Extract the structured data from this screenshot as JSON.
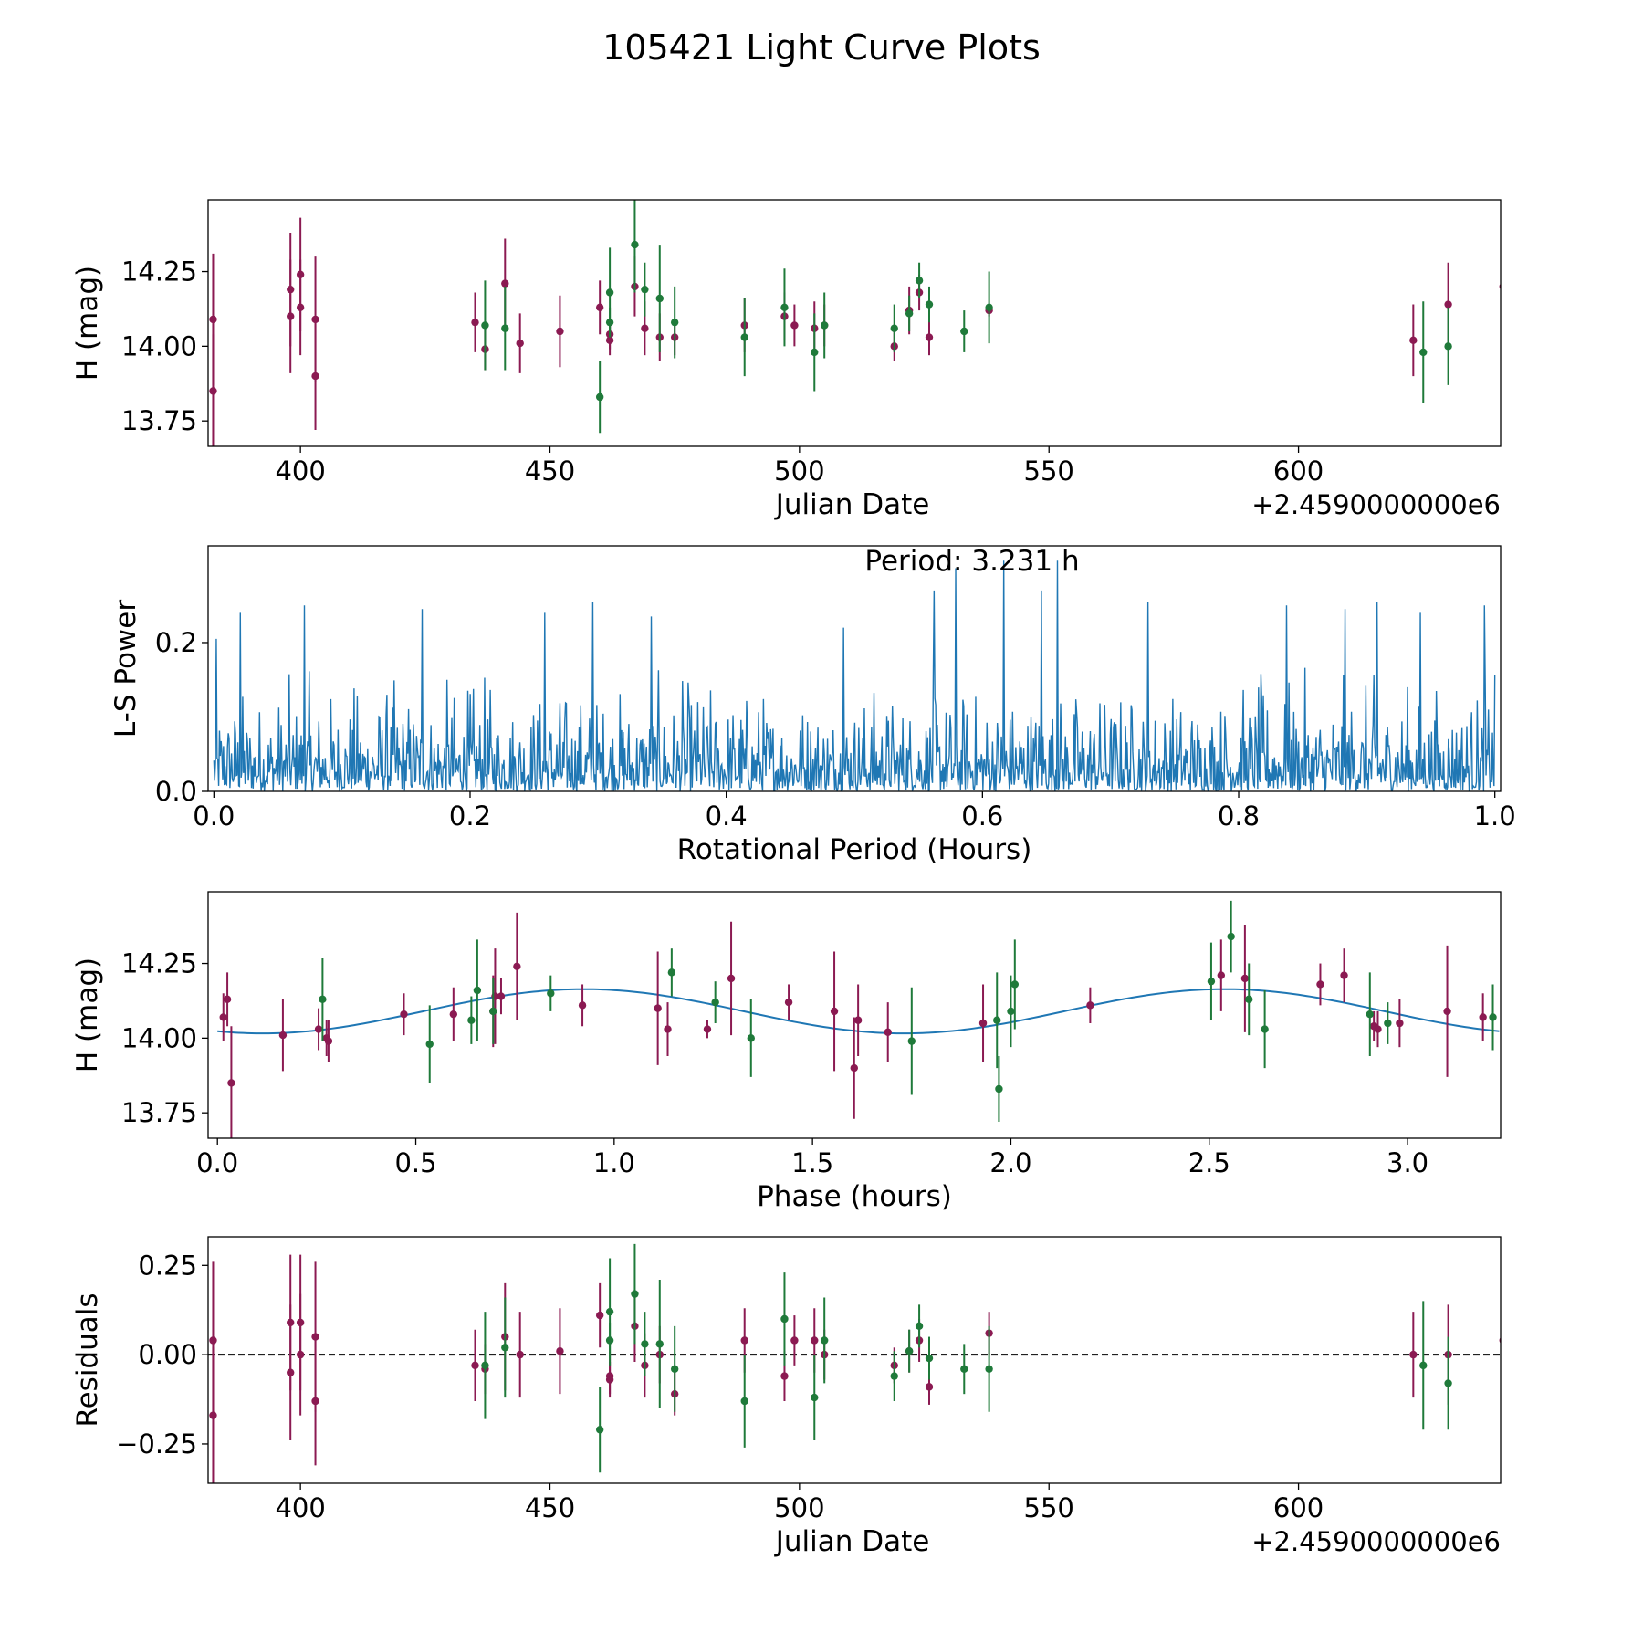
{
  "title": "105421 Light Curve Plots",
  "colors": {
    "red": "#8b1a52",
    "green": "#1f7a3a",
    "line": "#1f77b4",
    "zero": "#000000"
  },
  "chart_data": [
    {
      "id": "raw",
      "type": "scatter",
      "xlabel": "Julian Date",
      "ylabel": "H (mag)",
      "offset_label": "+2.4590000000e6",
      "xlim": [
        381.5,
        640.5
      ],
      "ylim": [
        13.665,
        14.49
      ],
      "xticks": [
        400,
        450,
        500,
        550,
        600
      ],
      "xtick_labels": [
        "400",
        "450",
        "500",
        "550",
        "600"
      ],
      "yticks": [
        13.75,
        14.0,
        14.25
      ],
      "ytick_labels": [
        "13.75",
        "14.00",
        "14.25"
      ],
      "series": [
        {
          "name": "red",
          "color_key": "red",
          "points": [
            [
              382.5,
              14.09,
              0.22
            ],
            [
              382.5,
              13.85,
              0.19
            ],
            [
              398,
              14.19,
              0.19
            ],
            [
              398,
              14.1,
              0.19
            ],
            [
              400,
              14.24,
              0.19
            ],
            [
              400,
              14.13,
              0.16
            ],
            [
              403,
              14.09,
              0.21
            ],
            [
              403,
              13.9,
              0.18
            ],
            [
              435,
              14.08,
              0.1
            ],
            [
              437,
              13.99,
              0.07
            ],
            [
              441,
              14.21,
              0.15
            ],
            [
              444,
              14.01,
              0.1
            ],
            [
              452,
              14.05,
              0.12
            ],
            [
              460,
              14.13,
              0.09
            ],
            [
              462,
              14.04,
              0.05
            ],
            [
              462,
              14.02,
              0.05
            ],
            [
              467,
              14.2,
              0.1
            ],
            [
              469,
              14.06,
              0.09
            ],
            [
              472,
              14.03,
              0.08
            ],
            [
              475,
              14.03,
              0.06
            ],
            [
              489,
              14.07,
              0.09
            ],
            [
              497,
              14.1,
              0.08
            ],
            [
              499,
              14.07,
              0.07
            ],
            [
              503,
              14.06,
              0.09
            ],
            [
              505,
              14.07,
              0.07
            ],
            [
              519,
              14.0,
              0.05
            ],
            [
              522,
              14.12,
              0.08
            ],
            [
              524,
              14.18,
              0.06
            ],
            [
              526,
              14.03,
              0.06
            ],
            [
              538,
              14.12,
              0.02
            ],
            [
              623,
              14.02,
              0.12
            ],
            [
              630,
              14.14,
              0.14
            ],
            [
              641,
              14.2,
              0.18
            ]
          ]
        },
        {
          "name": "green",
          "color_key": "green",
          "points": [
            [
              437,
              14.07,
              0.15
            ],
            [
              441,
              14.06,
              0.14
            ],
            [
              460,
              13.83,
              0.12
            ],
            [
              462,
              14.18,
              0.15
            ],
            [
              462,
              14.08,
              0.05
            ],
            [
              467,
              14.34,
              0.16
            ],
            [
              469,
              14.19,
              0.09
            ],
            [
              472,
              14.16,
              0.18
            ],
            [
              475,
              14.08,
              0.12
            ],
            [
              489,
              14.03,
              0.13
            ],
            [
              497,
              14.13,
              0.13
            ],
            [
              503,
              13.98,
              0.13
            ],
            [
              505,
              14.07,
              0.11
            ],
            [
              519,
              14.06,
              0.08
            ],
            [
              522,
              14.11,
              0.06
            ],
            [
              524,
              14.22,
              0.06
            ],
            [
              526,
              14.14,
              0.06
            ],
            [
              533,
              14.05,
              0.07
            ],
            [
              538,
              14.13,
              0.12
            ],
            [
              625,
              13.98,
              0.17
            ],
            [
              630,
              14.0,
              0.13
            ]
          ]
        }
      ]
    },
    {
      "id": "periodogram",
      "type": "line",
      "xlabel": "Rotational Period (Hours)",
      "ylabel": "L-S Power",
      "annotation": "Period: 3.231 h",
      "xlim": [
        -0.0045,
        1.0045
      ],
      "ylim": [
        0,
        0.33
      ],
      "xticks": [
        0.0,
        0.2,
        0.4,
        0.6,
        0.8,
        1.0
      ],
      "xtick_labels": [
        "0.0",
        "0.2",
        "0.4",
        "0.6",
        "0.8",
        "1.0"
      ],
      "yticks": [
        0.0,
        0.2
      ],
      "ytick_labels": [
        "0.0",
        "0.2"
      ],
      "samples": 1600,
      "x_range": [
        0.0,
        1.0
      ],
      "mean_power": 0.04,
      "peaks": [
        [
          0.0017,
          0.205
        ],
        [
          0.0208,
          0.24
        ],
        [
          0.0708,
          0.25
        ],
        [
          0.1625,
          0.245
        ],
        [
          0.2583,
          0.24
        ],
        [
          0.2958,
          0.255
        ],
        [
          0.3417,
          0.235
        ],
        [
          0.4917,
          0.22
        ],
        [
          0.5625,
          0.27
        ],
        [
          0.5792,
          0.3
        ],
        [
          0.6167,
          0.31
        ],
        [
          0.6458,
          0.27
        ],
        [
          0.6583,
          0.31
        ],
        [
          0.7292,
          0.255
        ],
        [
          0.8375,
          0.25
        ],
        [
          0.8833,
          0.245
        ],
        [
          0.9083,
          0.255
        ],
        [
          0.9417,
          0.24
        ],
        [
          0.9917,
          0.25
        ]
      ]
    },
    {
      "id": "phase",
      "type": "scatter",
      "xlabel": "Phase (hours)",
      "ylabel": "H (mag)",
      "xlim": [
        -0.0235,
        3.2345
      ],
      "ylim": [
        13.665,
        14.49
      ],
      "xticks": [
        0.0,
        0.5,
        1.0,
        1.5,
        2.0,
        2.5,
        3.0
      ],
      "xtick_labels": [
        "0.0",
        "0.5",
        "1.0",
        "1.5",
        "2.0",
        "2.5",
        "3.0"
      ],
      "yticks": [
        13.75,
        14.0,
        14.25
      ],
      "ytick_labels": [
        "13.75",
        "14.00",
        "14.25"
      ],
      "model": {
        "period": 3.231,
        "mean": 14.09,
        "amplitude": 0.074,
        "phase_of_min": 0.115,
        "cycles": 2
      },
      "series": [
        {
          "name": "red",
          "color_key": "red",
          "points": [
            [
              0.015,
              14.07,
              0.08
            ],
            [
              0.025,
              14.13,
              0.09
            ],
            [
              0.035,
              13.85,
              0.19
            ],
            [
              0.165,
              14.01,
              0.12
            ],
            [
              0.255,
              14.03,
              0.07
            ],
            [
              0.275,
              14.0,
              0.06
            ],
            [
              0.28,
              13.99,
              0.07
            ],
            [
              0.47,
              14.08,
              0.07
            ],
            [
              0.595,
              14.08,
              0.09
            ],
            [
              0.695,
              14.09,
              0.12
            ],
            [
              0.7,
              14.14,
              0.16
            ],
            [
              0.715,
              14.14,
              0.06
            ],
            [
              0.755,
              14.24,
              0.18
            ],
            [
              0.92,
              14.11,
              0.07
            ],
            [
              1.11,
              14.1,
              0.19
            ],
            [
              1.135,
              14.03,
              0.09
            ],
            [
              1.235,
              14.03,
              0.03
            ],
            [
              1.295,
              14.2,
              0.19
            ],
            [
              1.44,
              14.12,
              0.06
            ],
            [
              1.555,
              14.09,
              0.2
            ],
            [
              1.605,
              13.9,
              0.17
            ],
            [
              1.615,
              14.06,
              0.12
            ],
            [
              1.69,
              14.02,
              0.1
            ],
            [
              1.93,
              14.05,
              0.13
            ],
            [
              2.2,
              14.11,
              0.06
            ],
            [
              2.53,
              14.21,
              0.12
            ],
            [
              2.59,
              14.2,
              0.18
            ],
            [
              2.78,
              14.18,
              0.07
            ],
            [
              2.84,
              14.21,
              0.09
            ],
            [
              2.915,
              14.04,
              0.05
            ],
            [
              2.925,
              14.03,
              0.06
            ],
            [
              2.98,
              14.05,
              0.08
            ],
            [
              3.1,
              14.09,
              0.22
            ],
            [
              3.19,
              14.07,
              0.08
            ]
          ]
        },
        {
          "name": "green",
          "color_key": "green",
          "points": [
            [
              0.265,
              14.13,
              0.14
            ],
            [
              0.535,
              13.98,
              0.13
            ],
            [
              0.64,
              14.06,
              0.08
            ],
            [
              0.655,
              14.16,
              0.17
            ],
            [
              0.695,
              14.09,
              0.11
            ],
            [
              0.84,
              14.15,
              0.06
            ],
            [
              1.145,
              14.22,
              0.08
            ],
            [
              1.255,
              14.12,
              0.07
            ],
            [
              1.345,
              14.0,
              0.13
            ],
            [
              1.75,
              13.99,
              0.18
            ],
            [
              1.965,
              14.06,
              0.16
            ],
            [
              1.97,
              13.83,
              0.11
            ],
            [
              2.0,
              14.09,
              0.12
            ],
            [
              2.01,
              14.18,
              0.15
            ],
            [
              2.505,
              14.19,
              0.13
            ],
            [
              2.555,
              14.34,
              0.12
            ],
            [
              2.6,
              14.13,
              0.12
            ],
            [
              2.64,
              14.03,
              0.13
            ],
            [
              2.905,
              14.08,
              0.14
            ],
            [
              2.95,
              14.05,
              0.07
            ],
            [
              3.215,
              14.07,
              0.11
            ]
          ]
        }
      ]
    },
    {
      "id": "residuals",
      "type": "scatter",
      "xlabel": "Julian Date",
      "ylabel": "Residuals",
      "offset_label": "+2.4590000000e6",
      "xlim": [
        381.5,
        640.5
      ],
      "ylim": [
        -0.36,
        0.33
      ],
      "xticks": [
        400,
        450,
        500,
        550,
        600
      ],
      "xtick_labels": [
        "400",
        "450",
        "500",
        "550",
        "600"
      ],
      "yticks": [
        -0.25,
        0.0,
        0.25
      ],
      "ytick_labels": [
        "−0.25",
        "0.00",
        "0.25"
      ],
      "zero_line": 0,
      "series": [
        {
          "name": "red",
          "color_key": "red",
          "points": [
            [
              382.5,
              0.04,
              0.22
            ],
            [
              382.5,
              -0.17,
              0.19
            ],
            [
              398,
              0.09,
              0.19
            ],
            [
              398,
              -0.05,
              0.19
            ],
            [
              400,
              0.09,
              0.19
            ],
            [
              400,
              0.0,
              0.17
            ],
            [
              403,
              0.05,
              0.21
            ],
            [
              403,
              -0.13,
              0.18
            ],
            [
              435,
              -0.03,
              0.1
            ],
            [
              437,
              -0.04,
              0.07
            ],
            [
              441,
              0.05,
              0.15
            ],
            [
              444,
              0.0,
              0.12
            ],
            [
              452,
              0.01,
              0.12
            ],
            [
              460,
              0.11,
              0.09
            ],
            [
              462,
              -0.06,
              0.05
            ],
            [
              462,
              -0.07,
              0.05
            ],
            [
              467,
              0.08,
              0.1
            ],
            [
              469,
              -0.03,
              0.09
            ],
            [
              472,
              0.0,
              0.08
            ],
            [
              475,
              -0.11,
              0.06
            ],
            [
              489,
              0.04,
              0.09
            ],
            [
              497,
              -0.06,
              0.07
            ],
            [
              499,
              0.04,
              0.07
            ],
            [
              503,
              0.04,
              0.09
            ],
            [
              505,
              0.0,
              0.07
            ],
            [
              519,
              -0.03,
              0.05
            ],
            [
              522,
              0.01,
              0.06
            ],
            [
              524,
              0.04,
              0.06
            ],
            [
              526,
              -0.09,
              0.05
            ],
            [
              538,
              0.06,
              0.06
            ],
            [
              623,
              0.0,
              0.12
            ],
            [
              630,
              0.0,
              0.14
            ],
            [
              641,
              0.04,
              0.18
            ]
          ]
        },
        {
          "name": "green",
          "color_key": "green",
          "points": [
            [
              437,
              -0.03,
              0.15
            ],
            [
              441,
              0.02,
              0.14
            ],
            [
              460,
              -0.21,
              0.12
            ],
            [
              462,
              0.12,
              0.15
            ],
            [
              462,
              0.04,
              0.05
            ],
            [
              467,
              0.17,
              0.14
            ],
            [
              469,
              0.03,
              0.09
            ],
            [
              472,
              0.03,
              0.18
            ],
            [
              475,
              -0.04,
              0.12
            ],
            [
              489,
              -0.13,
              0.13
            ],
            [
              497,
              0.1,
              0.13
            ],
            [
              503,
              -0.12,
              0.12
            ],
            [
              505,
              0.04,
              0.12
            ],
            [
              519,
              -0.06,
              0.07
            ],
            [
              522,
              0.01,
              0.06
            ],
            [
              524,
              0.08,
              0.06
            ],
            [
              526,
              -0.01,
              0.06
            ],
            [
              533,
              -0.04,
              0.07
            ],
            [
              538,
              -0.04,
              0.12
            ],
            [
              625,
              -0.03,
              0.18
            ],
            [
              630,
              -0.08,
              0.13
            ]
          ]
        }
      ]
    }
  ]
}
